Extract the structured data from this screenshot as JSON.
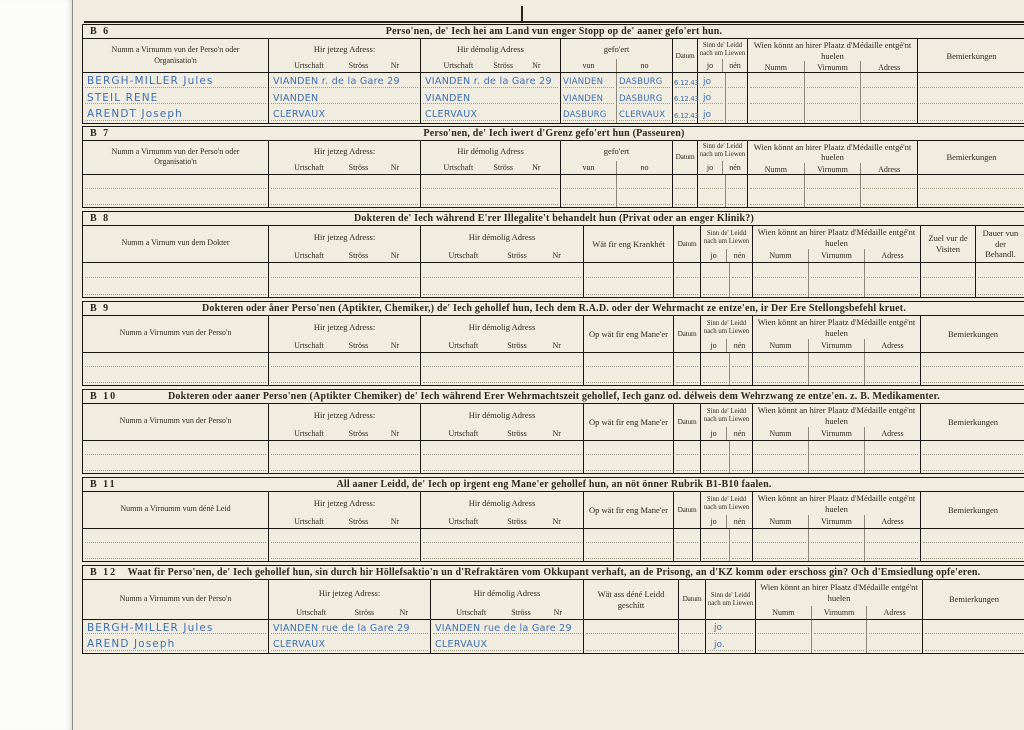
{
  "page": {
    "description": "Scanned Luxembourgish resistance questionnaire form, sections B6 to B12, with handwritten blue-ink entries"
  },
  "labels": {
    "jetzeg_adress": "Hir jetzeg Adress:",
    "demolig_adress": "Hir démolig Adress",
    "urtschaft": "Urtschaft",
    "stross": "Ströss",
    "nr": "Nr",
    "gefoert": "gefo'ert",
    "vun": "vun",
    "no": "no",
    "datum": "Datum",
    "sinn_liewen": "Sinn de' Leidd nach um Liewen",
    "jo": "jo",
    "nen": "nén",
    "wien_medaille": "Wien könnt an hirer Plaatz d'Médaille entgé'nt huelen",
    "numm": "Numm",
    "virnumm": "Virnumm",
    "adress": "Adress",
    "bemierkungen": "Bemierkungen",
    "krankheet": "Wät fir eng Krankhét",
    "maneer": "Op wät fir eng Mane'er",
    "geschitt": "Wät ass déné Leidd geschítt",
    "zuel_visiten": "Zuel vur de Visiten",
    "dauer_behandl": "Dauer vun der Behandl."
  },
  "ink_color": "#3f6fb5",
  "sections": [
    {
      "id": "B 6",
      "title": "Perso'nen, de' Iech hei am Land vun enger Stopp op de' aaner gefo'ert hun.",
      "name_label": "Numm a Virnumm vun der Perso'n oder Organisatio'n",
      "rows": [
        {
          "name": "BERGH-MILLER Jules",
          "jetzeg": "VIANDEN r. de la Gare 29",
          "demolig": "VIANDEN r. de la Gare 29",
          "vun": "VIANDEN",
          "no": "DASBURG",
          "datum": "6.12.43",
          "jo": "jo"
        },
        {
          "name": "STEIL RENE",
          "jetzeg": "VIANDEN",
          "demolig": "VIANDEN",
          "vun": "VIANDEN",
          "no": "DASBURG",
          "datum": "6.12.43",
          "jo": "jo"
        },
        {
          "name": "ARENDT Joseph",
          "jetzeg": "CLERVAUX",
          "demolig": "CLERVAUX",
          "vun": "DASBURG",
          "no": "CLERVAUX",
          "datum": "6.12.43",
          "jo": "jo"
        }
      ]
    },
    {
      "id": "B 7",
      "title": "Perso'nen, de' Iech iwert d'Grenz gefo'ert hun (Passeuren)",
      "name_label": "Numm a Virnumm vun der Perso'n oder Organisatio'n",
      "rows": [
        {},
        {}
      ]
    },
    {
      "id": "B 8",
      "title": "Dokteren de' Iech während E'rer Illegalite't behandelt hun (Privat oder an enger Klinik?)",
      "name_label": "Numm a Virnum vun dem Dokter",
      "rows": [
        {},
        {}
      ]
    },
    {
      "id": "B 9",
      "title": "Dokteren oder åner Perso'nen (Aptikter, Chemiker,) de' Iech gehollef hun, Iech dem R.A.D. oder der Wehrmacht ze entze'en, ir Der Ere Stellongsbefehl kruet.",
      "name_label": "Numm a Virnumm vun der Perso'n",
      "rows": [
        {},
        {}
      ]
    },
    {
      "id": "B 10",
      "title": "Dokteren oder aaner Perso'nen (Aptikter Chemiker) de' Iech während Erer Wehrmachtszeit gehollef, Iech ganz od. délweis dem Wehrzwang ze entze'en. z. B. Medikamenter.",
      "name_label": "Numm a Virnumm vun der Perso'n",
      "rows": [
        {},
        {}
      ]
    },
    {
      "id": "B 11",
      "title": "All aaner Leidd, de' Iech op irgent eng Mane'er gehollef hun, an nöt önner Rubrik B1-B10 faalen.",
      "name_label": "Numm a Virnumm vum déné Leid",
      "rows": [
        {},
        {}
      ]
    },
    {
      "id": "B 12",
      "title": "Waat fir Perso'nen, de' Iech gehollef hun, sin durch hir Höllefsaktio'n un d'Refraktären vom Okkupant verhaft, an de Prisong, an d'KZ komm oder erschoss gin? Och d'Emsiedlung opfe'eren.",
      "name_label": "Numm a Virnumm vun der Perso'n",
      "rows": [
        {
          "name": "BERGH-MILLER Jules",
          "jetzeg": "VIANDEN rue de la Gare 29",
          "demolig": "VIANDEN rue de la Gare 29",
          "jo": "jo"
        },
        {
          "name": "AREND Joseph",
          "jetzeg": "CLERVAUX",
          "demolig": "CLERVAUX",
          "jo": "jo."
        }
      ]
    }
  ]
}
